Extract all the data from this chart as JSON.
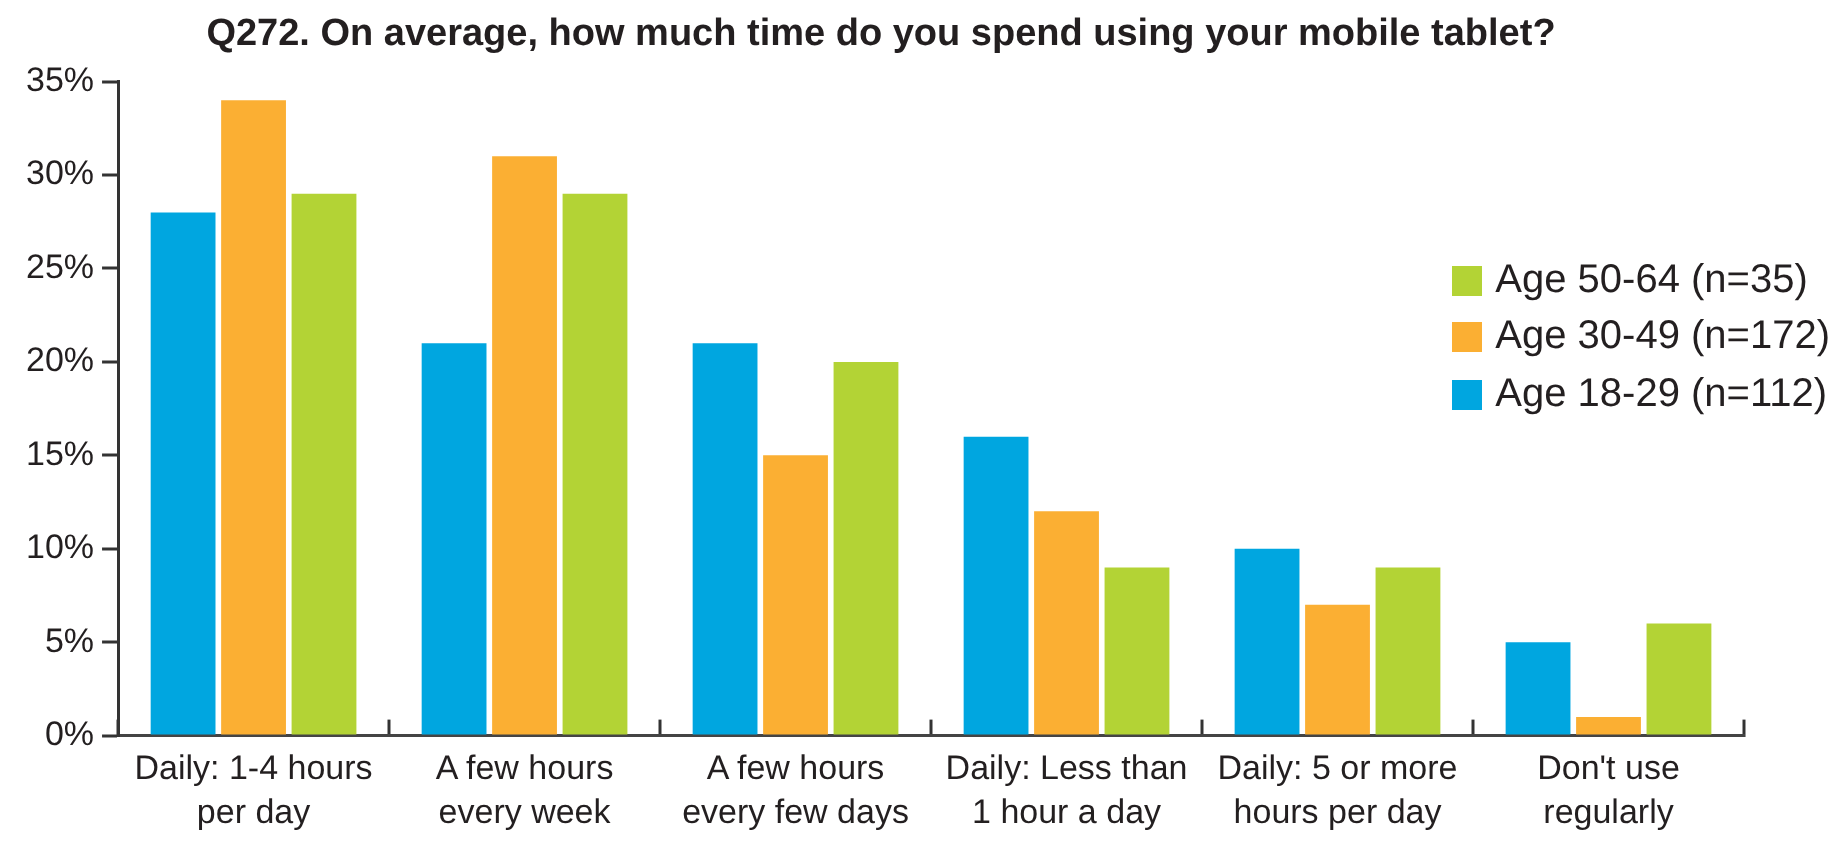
{
  "chart_data": {
    "type": "bar",
    "title": "Q272. On average, how much time do you spend using your mobile tablet?",
    "categories": [
      "Daily: 1-4 hours per day",
      "A few hours every week",
      "A few hours every few days",
      "Daily: Less than 1 hour a day",
      "Daily: 5 or more hours per day",
      "Don't use regularly"
    ],
    "series": [
      {
        "name": "Age 18-29 (n=112)",
        "color": "#00a6e0",
        "values": [
          28,
          21,
          21,
          16,
          10,
          5
        ]
      },
      {
        "name": "Age 30-49 (n=172)",
        "color": "#fbaf33",
        "values": [
          34,
          31,
          15,
          12,
          7,
          1
        ]
      },
      {
        "name": "Age 50-64 (n=35)",
        "color": "#b3d335",
        "values": [
          29,
          29,
          20,
          9,
          9,
          6
        ]
      }
    ],
    "ylim": [
      0,
      35
    ],
    "yticks": [
      {
        "value": 0,
        "label": "0%"
      },
      {
        "value": 5,
        "label": "5%"
      },
      {
        "value": 10,
        "label": "10%"
      },
      {
        "value": 15,
        "label": "15%"
      },
      {
        "value": 20,
        "label": "20%"
      },
      {
        "value": 25,
        "label": "25%"
      },
      {
        "value": 30,
        "label": "30%"
      },
      {
        "value": 35,
        "label": "35%"
      }
    ],
    "legend": "right"
  }
}
